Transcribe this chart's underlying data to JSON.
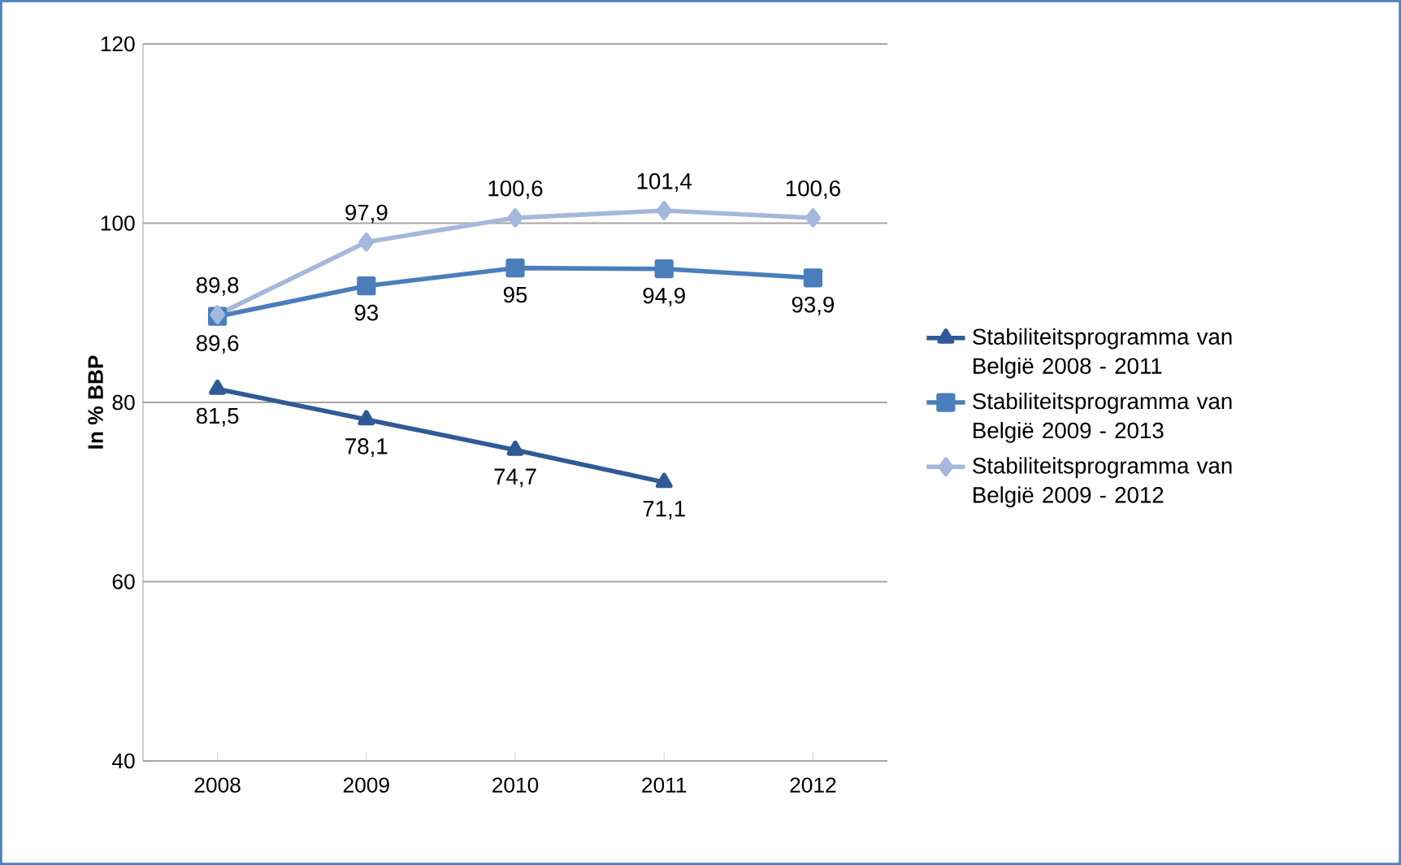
{
  "chart_data": {
    "type": "line",
    "ylabel": "In % BBP",
    "categories": [
      "2008",
      "2009",
      "2010",
      "2011",
      "2012"
    ],
    "series": [
      {
        "name": "Stabiliteitsprogramma  van België 2008 - 2011",
        "color": "#2f5a96",
        "marker": "triangle",
        "values": [
          81.5,
          78.1,
          74.7,
          71.1,
          null
        ],
        "value_labels": [
          "81,5",
          "78,1",
          "74,7",
          "71,1",
          null
        ]
      },
      {
        "name": "Stabiliteitsprogramma  van België 2009 - 2013",
        "color": "#4a7ebb",
        "marker": "square",
        "values": [
          89.6,
          93,
          95,
          94.9,
          93.9
        ],
        "value_labels": [
          "89,6",
          "93",
          "95",
          "94,9",
          "93,9"
        ]
      },
      {
        "name": "Stabiliteitsprogramma  van België 2009 - 2012",
        "color": "#a4b8dc",
        "marker": "diamond",
        "values": [
          89.8,
          97.9,
          100.6,
          101.4,
          100.6
        ],
        "value_labels": [
          "89,8",
          "97,9",
          "100,6",
          "101,4",
          "100,6"
        ]
      }
    ],
    "ylim": [
      40,
      120
    ],
    "yticks": [
      40,
      60,
      80,
      100,
      120
    ],
    "grid": "y",
    "legend": "right"
  }
}
